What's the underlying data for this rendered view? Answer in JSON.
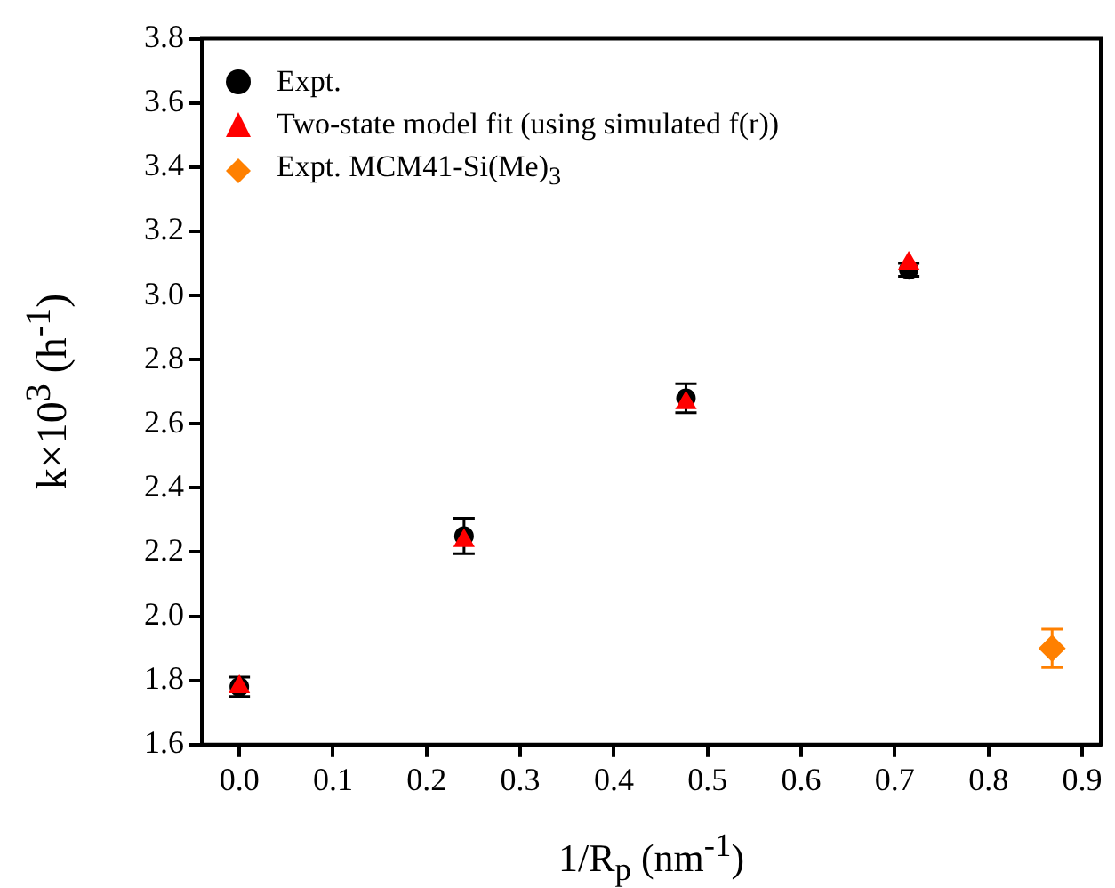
{
  "chart_data": {
    "type": "scatter",
    "xlabel": "1/R$_{p}$ (nm$^{-1}$)",
    "ylabel": "k×10$^{3}$ (h$^{-1}$)",
    "xlim": [
      -0.04,
      0.92
    ],
    "ylim": [
      1.6,
      3.8
    ],
    "xticks": [
      {
        "value": 0,
        "label": "0.0"
      },
      {
        "value": 0.1,
        "label": "0.1"
      },
      {
        "value": 0.2,
        "label": "0.2"
      },
      {
        "value": 0.3,
        "label": "0.3"
      },
      {
        "value": 0.4,
        "label": "0.4"
      },
      {
        "value": 0.5,
        "label": "0.5"
      },
      {
        "value": 0.6,
        "label": "0.6"
      },
      {
        "value": 0.7,
        "label": "0.7"
      },
      {
        "value": 0.8,
        "label": "0.8"
      },
      {
        "value": 0.9,
        "label": "0.9"
      }
    ],
    "yticks": [
      {
        "value": 1.6,
        "label": "1.6"
      },
      {
        "value": 1.8,
        "label": "1.8"
      },
      {
        "value": 2,
        "label": "2.0"
      },
      {
        "value": 2.2,
        "label": "2.2"
      },
      {
        "value": 2.4,
        "label": "2.4"
      },
      {
        "value": 2.6,
        "label": "2.6"
      },
      {
        "value": 2.8,
        "label": "2.8"
      },
      {
        "value": 3,
        "label": "3.0"
      },
      {
        "value": 3.2,
        "label": "3.2"
      },
      {
        "value": 3.4,
        "label": "3.4"
      },
      {
        "value": 3.6,
        "label": "3.6"
      },
      {
        "value": 3.8,
        "label": "3.8"
      }
    ],
    "grid": false,
    "legend": "top left",
    "series": [
      {
        "name": "Expt.",
        "color": "#000000",
        "marker": "circle",
        "x": [
          0,
          0.24,
          0.477,
          0.715
        ],
        "values": [
          1.78,
          2.25,
          2.68,
          3.08
        ],
        "errors": [
          0.03,
          0.055,
          0.045,
          0.02
        ]
      },
      {
        "name": "Two-state model fit (using simulated f(r))",
        "color": "#ff0000",
        "marker": "triangle",
        "x": [
          0,
          0.24,
          0.477,
          0.715
        ],
        "values": [
          1.78,
          2.235,
          2.665,
          3.1
        ]
      },
      {
        "name": "Expt. MCM41-Si(Me)$_{3}$",
        "color": "#ff8000",
        "marker": "diamond",
        "x": [
          0.868
        ],
        "values": [
          1.9
        ],
        "errors": [
          0.06
        ]
      }
    ]
  }
}
